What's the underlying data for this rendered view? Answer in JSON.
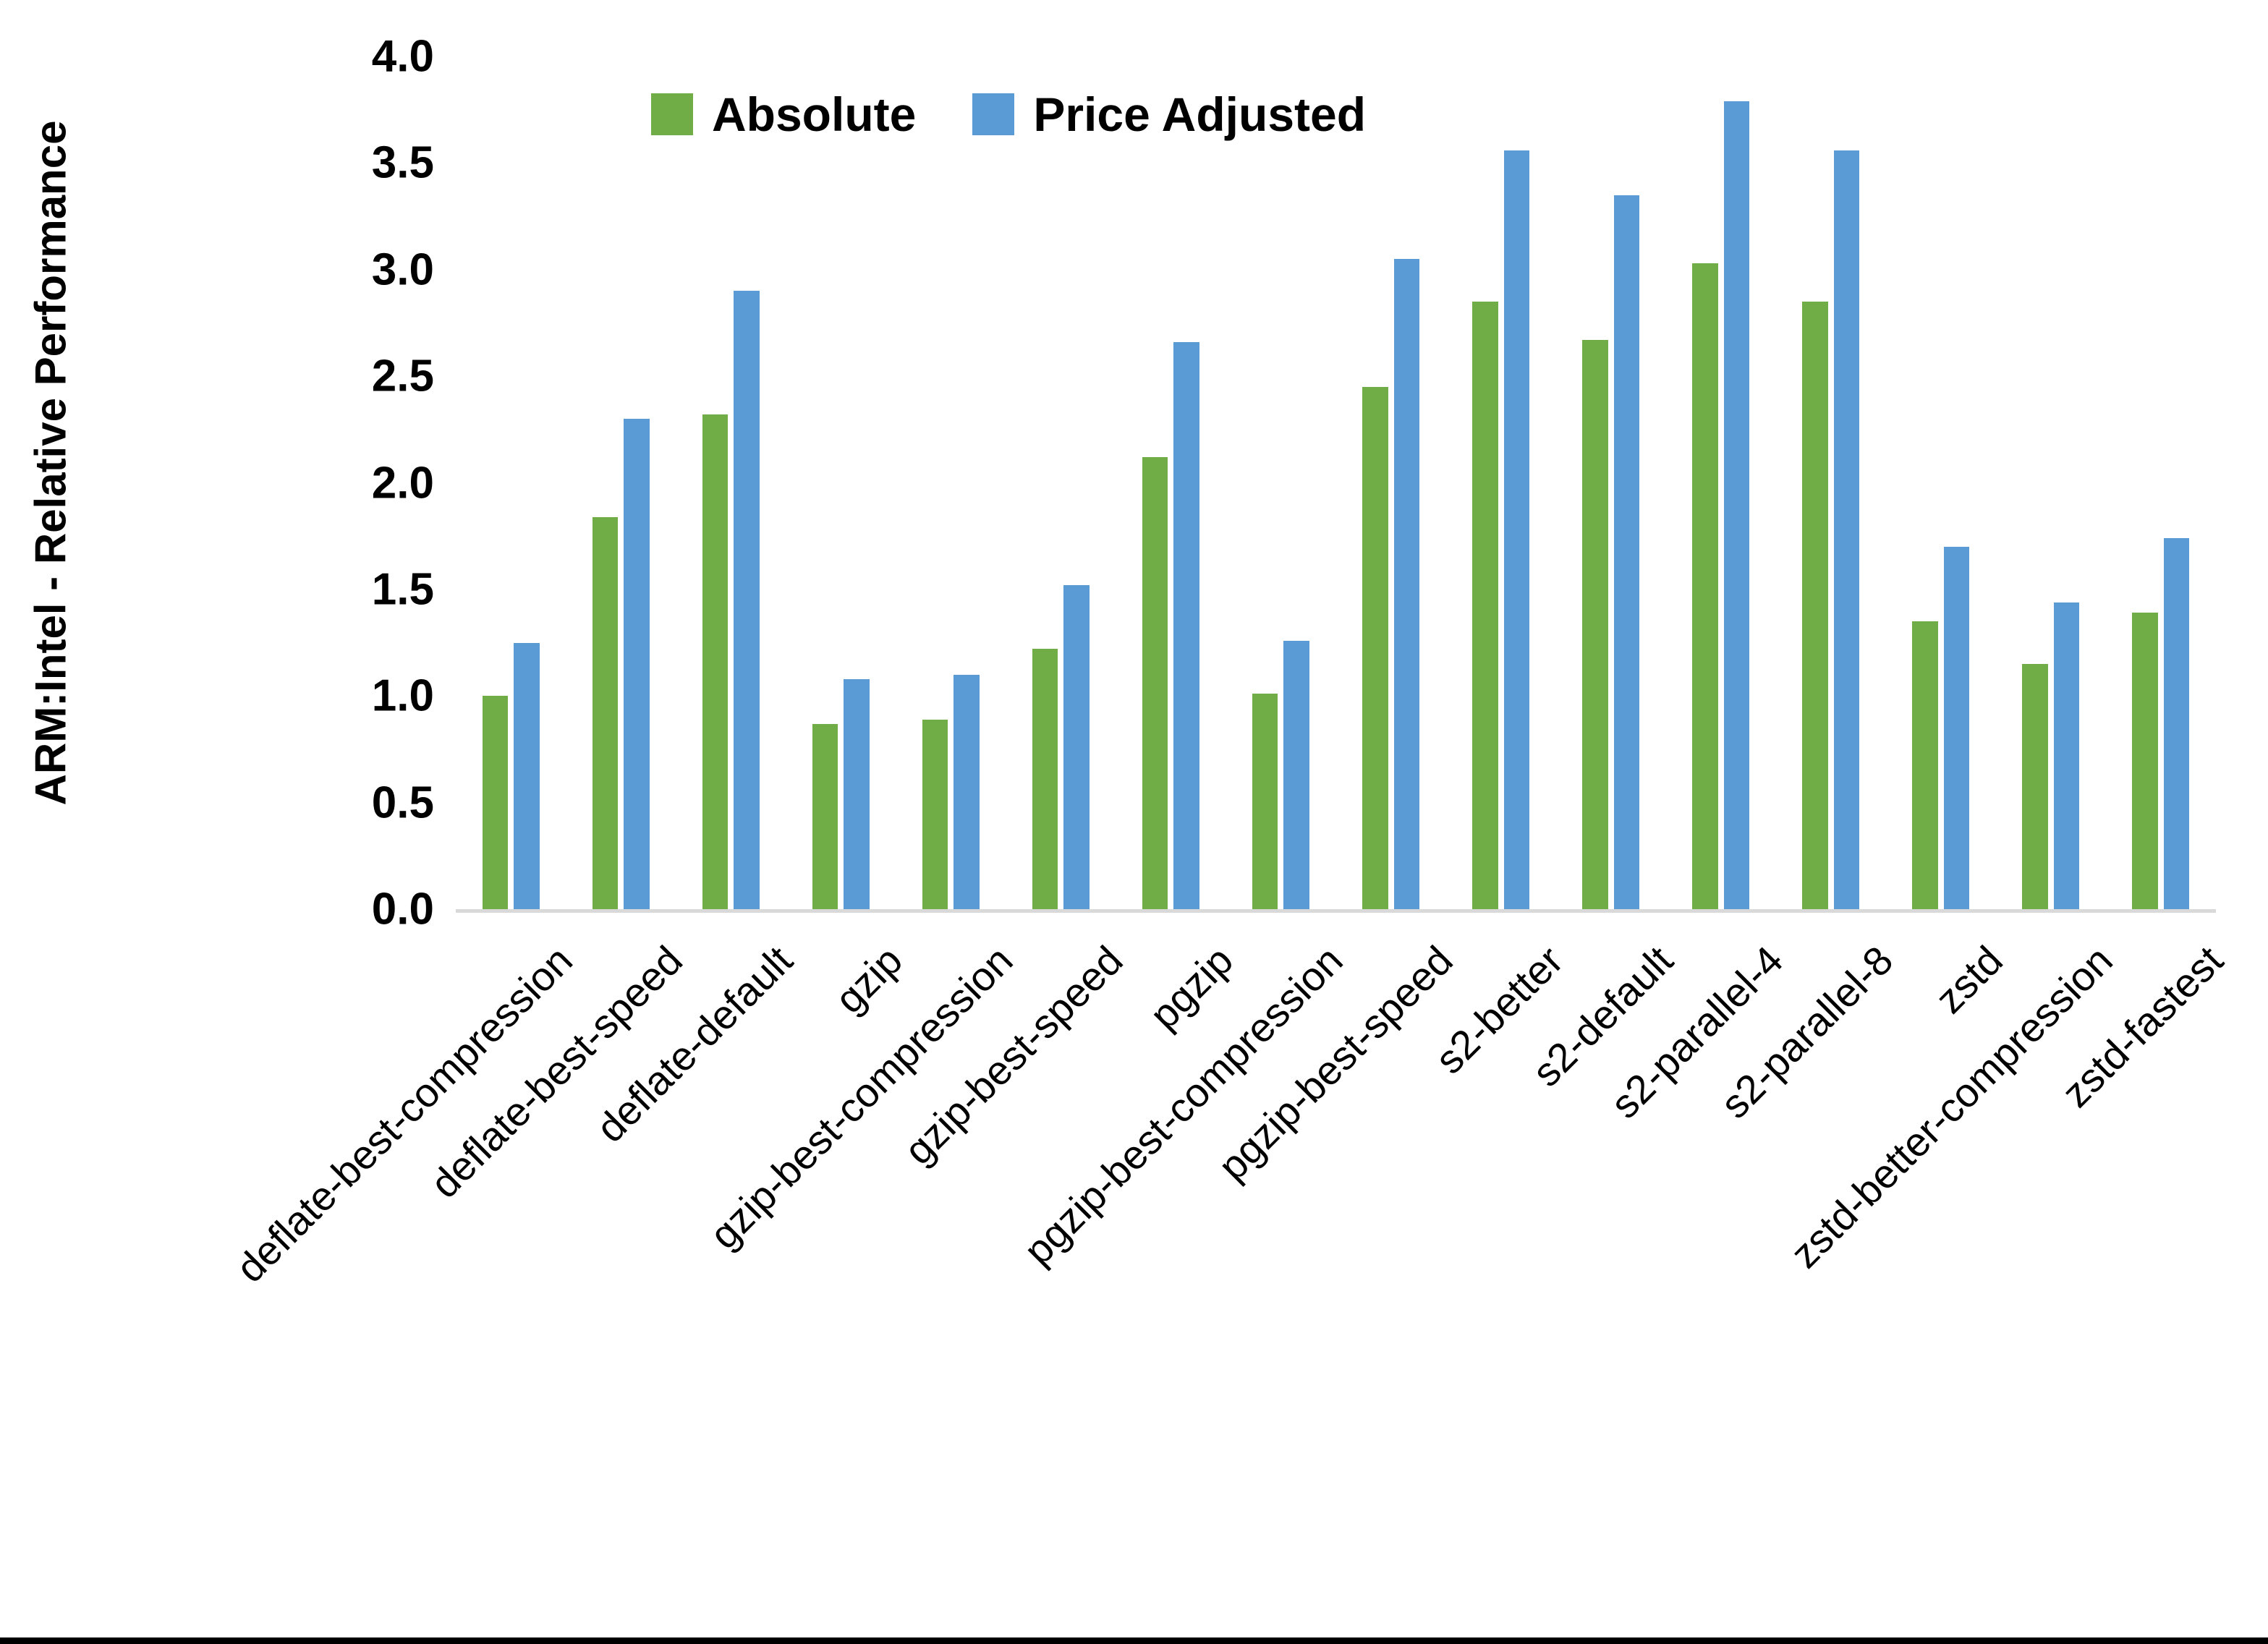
{
  "chart_data": {
    "type": "bar",
    "title": "",
    "ylabel": "ARM:Intel - Relative Performance",
    "xlabel": "",
    "ylim": [
      0.0,
      4.0
    ],
    "ytick_step": 0.5,
    "ytick_labels": [
      "0.0",
      "0.5",
      "1.0",
      "1.5",
      "2.0",
      "2.5",
      "3.0",
      "3.5",
      "4.0"
    ],
    "grid": false,
    "legend_position": "top-center",
    "categories": [
      "deflate-best-compression",
      "deflate-best-speed",
      "deflate-default",
      "gzip",
      "gzip-best-compression",
      "gzip-best-speed",
      "pgzip",
      "pgzip-best-compression",
      "pgzip-best-speed",
      "s2-better",
      "s2-default",
      "s2-parallel-4",
      "s2-parallel-8",
      "zstd",
      "zstd-better-compression",
      "zstd-fastest"
    ],
    "series": [
      {
        "name": "Absolute",
        "color": "#70AD47",
        "values": [
          1.0,
          1.84,
          2.32,
          0.87,
          0.89,
          1.22,
          2.12,
          1.01,
          2.45,
          2.85,
          2.67,
          3.03,
          2.85,
          1.35,
          1.15,
          1.39
        ]
      },
      {
        "name": "Price Adjusted",
        "color": "#5B9BD5",
        "values": [
          1.25,
          2.3,
          2.9,
          1.08,
          1.1,
          1.52,
          2.66,
          1.26,
          3.05,
          3.56,
          3.35,
          3.79,
          3.56,
          1.7,
          1.44,
          1.74
        ]
      }
    ],
    "axis_line_color": "#D9D9D9",
    "background_color": "#FFFFFF",
    "bottom_edge_color": "#000000"
  }
}
